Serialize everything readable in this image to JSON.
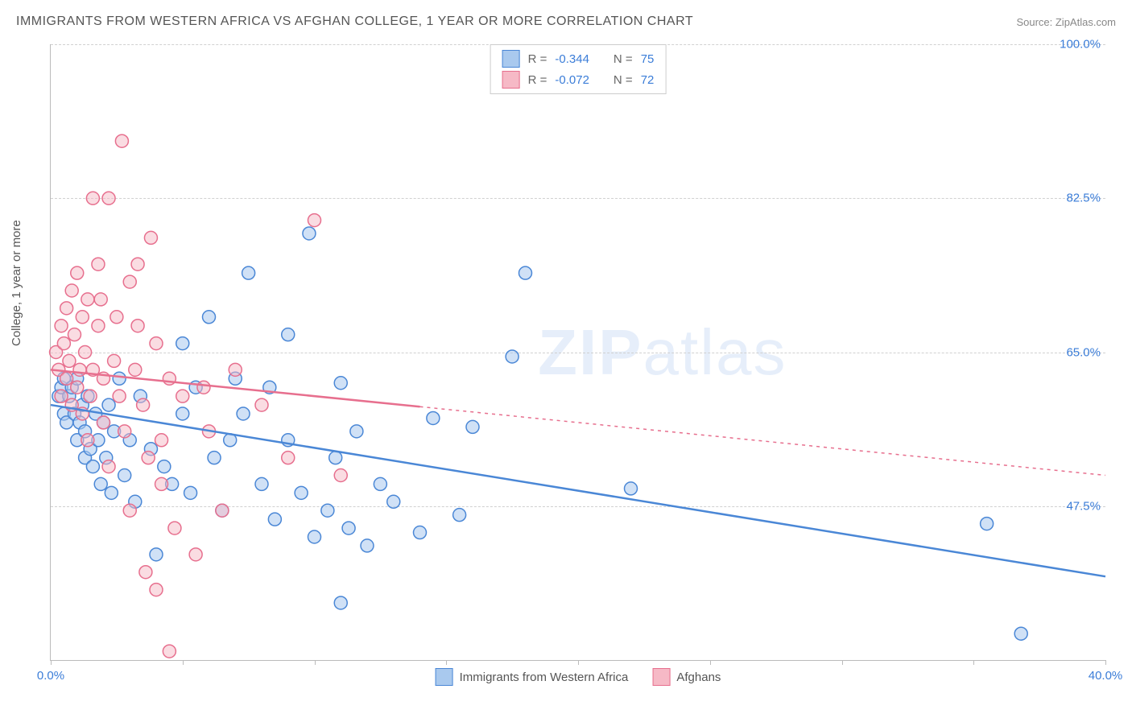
{
  "title": "IMMIGRANTS FROM WESTERN AFRICA VS AFGHAN COLLEGE, 1 YEAR OR MORE CORRELATION CHART",
  "source": "Source: ZipAtlas.com",
  "y_axis_label": "College, 1 year or more",
  "watermark_a": "ZIP",
  "watermark_b": "atlas",
  "chart": {
    "type": "scatter",
    "background_color": "#ffffff",
    "grid_color": "#d0d0d0",
    "axis_color": "#bbbbbb",
    "value_text_color": "#3b7dd8",
    "label_text_color": "#555555",
    "x_range": [
      0,
      40
    ],
    "y_range": [
      30,
      100
    ],
    "x_ticks": [
      0,
      5,
      10,
      15,
      20,
      25,
      30,
      35,
      40
    ],
    "x_tick_labels": {
      "0": "0.0%",
      "40": "40.0%"
    },
    "y_ticks": [
      47.5,
      65.0,
      82.5,
      100.0
    ],
    "y_tick_labels": [
      "47.5%",
      "65.0%",
      "82.5%",
      "100.0%"
    ],
    "marker_radius": 8,
    "marker_stroke_width": 1.5,
    "trend_line_width": 2.5,
    "series": [
      {
        "label": "Immigrants from Western Africa",
        "fill": "#a9c9ee",
        "stroke": "#4a87d6",
        "fill_opacity": 0.55,
        "R": "-0.344",
        "N": "75",
        "trend": {
          "x1": 0,
          "y1": 59,
          "x2": 40,
          "y2": 39.5,
          "solid_until_x": 40
        },
        "points": [
          [
            0.3,
            60
          ],
          [
            0.4,
            61
          ],
          [
            0.5,
            58
          ],
          [
            0.5,
            62
          ],
          [
            0.6,
            57
          ],
          [
            0.7,
            60
          ],
          [
            0.8,
            61
          ],
          [
            0.9,
            58
          ],
          [
            1.0,
            62
          ],
          [
            1.0,
            55
          ],
          [
            1.1,
            57
          ],
          [
            1.2,
            59
          ],
          [
            1.3,
            53
          ],
          [
            1.3,
            56
          ],
          [
            1.4,
            60
          ],
          [
            1.5,
            54
          ],
          [
            1.6,
            52
          ],
          [
            1.7,
            58
          ],
          [
            1.8,
            55
          ],
          [
            1.9,
            50
          ],
          [
            2.0,
            57
          ],
          [
            2.1,
            53
          ],
          [
            2.2,
            59
          ],
          [
            2.3,
            49
          ],
          [
            2.4,
            56
          ],
          [
            2.6,
            62
          ],
          [
            2.8,
            51
          ],
          [
            3.0,
            55
          ],
          [
            3.2,
            48
          ],
          [
            3.4,
            60
          ],
          [
            3.8,
            54
          ],
          [
            4.0,
            42
          ],
          [
            4.3,
            52
          ],
          [
            4.6,
            50
          ],
          [
            5.0,
            66
          ],
          [
            5.0,
            58
          ],
          [
            5.3,
            49
          ],
          [
            5.5,
            61
          ],
          [
            6.0,
            69
          ],
          [
            6.2,
            53
          ],
          [
            6.5,
            47
          ],
          [
            6.8,
            55
          ],
          [
            7.0,
            62
          ],
          [
            7.3,
            58
          ],
          [
            7.5,
            74
          ],
          [
            8.0,
            50
          ],
          [
            8.3,
            61
          ],
          [
            8.5,
            46
          ],
          [
            9.0,
            55
          ],
          [
            9.0,
            67
          ],
          [
            9.5,
            49
          ],
          [
            9.8,
            78.5
          ],
          [
            10,
            44
          ],
          [
            10.5,
            47
          ],
          [
            10.8,
            53
          ],
          [
            11,
            61.5
          ],
          [
            11,
            36.5
          ],
          [
            11.3,
            45
          ],
          [
            11.6,
            56
          ],
          [
            12,
            43
          ],
          [
            12.5,
            50
          ],
          [
            13,
            48
          ],
          [
            14,
            44.5
          ],
          [
            14.5,
            57.5
          ],
          [
            15.5,
            46.5
          ],
          [
            16,
            56.5
          ],
          [
            17.5,
            64.5
          ],
          [
            18,
            74
          ],
          [
            22,
            49.5
          ],
          [
            35.5,
            45.5
          ],
          [
            36.8,
            33
          ]
        ]
      },
      {
        "label": "Afghans",
        "fill": "#f6b9c6",
        "stroke": "#e76f8e",
        "fill_opacity": 0.5,
        "R": "-0.072",
        "N": "72",
        "trend": {
          "x1": 0,
          "y1": 63,
          "x2": 40,
          "y2": 51,
          "solid_until_x": 14
        },
        "points": [
          [
            0.2,
            65
          ],
          [
            0.3,
            63
          ],
          [
            0.4,
            68
          ],
          [
            0.4,
            60
          ],
          [
            0.5,
            66
          ],
          [
            0.6,
            70
          ],
          [
            0.6,
            62
          ],
          [
            0.7,
            64
          ],
          [
            0.8,
            72
          ],
          [
            0.8,
            59
          ],
          [
            0.9,
            67
          ],
          [
            1.0,
            61
          ],
          [
            1.0,
            74
          ],
          [
            1.1,
            63
          ],
          [
            1.2,
            58
          ],
          [
            1.2,
            69
          ],
          [
            1.3,
            65
          ],
          [
            1.4,
            55
          ],
          [
            1.4,
            71
          ],
          [
            1.5,
            60
          ],
          [
            1.6,
            82.5
          ],
          [
            1.6,
            63
          ],
          [
            1.8,
            68
          ],
          [
            1.8,
            75
          ],
          [
            1.9,
            71
          ],
          [
            2.0,
            62
          ],
          [
            2.0,
            57
          ],
          [
            2.2,
            52
          ],
          [
            2.2,
            82.5
          ],
          [
            2.4,
            64
          ],
          [
            2.5,
            69
          ],
          [
            2.6,
            60
          ],
          [
            2.7,
            89
          ],
          [
            2.8,
            56
          ],
          [
            3.0,
            73
          ],
          [
            3.0,
            47
          ],
          [
            3.2,
            63
          ],
          [
            3.3,
            68
          ],
          [
            3.3,
            75
          ],
          [
            3.5,
            59
          ],
          [
            3.6,
            40
          ],
          [
            3.7,
            53
          ],
          [
            3.8,
            78
          ],
          [
            4.0,
            66
          ],
          [
            4.0,
            38
          ],
          [
            4.2,
            55
          ],
          [
            4.2,
            50
          ],
          [
            4.5,
            62
          ],
          [
            4.5,
            31
          ],
          [
            4.7,
            45
          ],
          [
            5.0,
            60
          ],
          [
            5.5,
            42
          ],
          [
            5.8,
            61
          ],
          [
            6.0,
            56
          ],
          [
            6.5,
            47
          ],
          [
            7.0,
            63
          ],
          [
            8.0,
            59
          ],
          [
            9.0,
            53
          ],
          [
            10,
            80
          ],
          [
            11,
            51
          ]
        ]
      }
    ]
  },
  "legend_bottom": [
    {
      "label": "Immigrants from Western Africa",
      "fill": "#a9c9ee",
      "stroke": "#4a87d6"
    },
    {
      "label": "Afghans",
      "fill": "#f6b9c6",
      "stroke": "#e76f8e"
    }
  ]
}
